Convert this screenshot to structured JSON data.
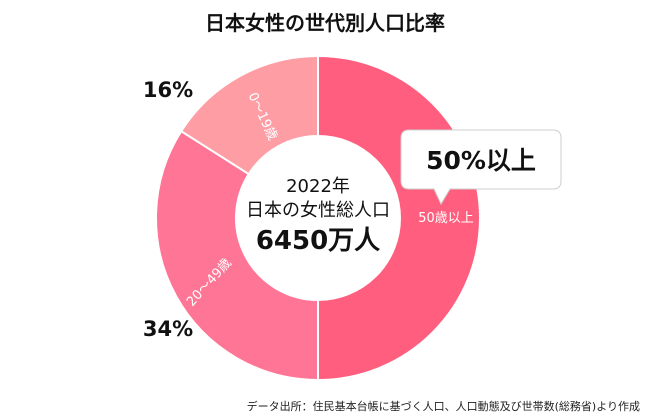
{
  "chart_data": {
    "type": "pie",
    "title": "日本女性の世代別人口比率",
    "slices": [
      {
        "label": "50歳以上",
        "value": 50,
        "percent_label": "50%以上",
        "color": "#ff5e7e"
      },
      {
        "label": "20〜49歳",
        "value": 34,
        "percent_label": "34%",
        "color": "#ff7596"
      },
      {
        "label": "0〜19歳",
        "value": 16,
        "percent_label": "16%",
        "color": "#ff9da5"
      }
    ],
    "center": {
      "year": "2022年",
      "subtitle": "日本の女性総人口",
      "total": "6450万人"
    },
    "source": "データ出所：住民基本台帳に基づく人口、人口動態及び世帯数(総務省)より作成"
  }
}
